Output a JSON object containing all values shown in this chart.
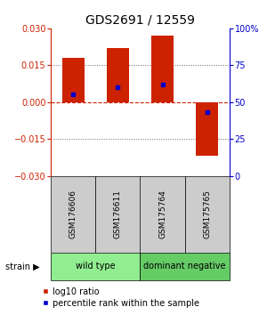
{
  "title": "GDS2691 / 12559",
  "samples": [
    "GSM176606",
    "GSM176611",
    "GSM175764",
    "GSM175765"
  ],
  "log10_ratios": [
    0.018,
    0.022,
    0.027,
    -0.022
  ],
  "percentile_ranks": [
    0.55,
    0.6,
    0.62,
    0.43
  ],
  "ylim_left": [
    -0.03,
    0.03
  ],
  "ylim_right": [
    0,
    100
  ],
  "yticks_left": [
    -0.03,
    -0.015,
    0,
    0.015,
    0.03
  ],
  "yticks_right": [
    0,
    25,
    50,
    75,
    100
  ],
  "groups": [
    {
      "label": "wild type",
      "samples": [
        0,
        1
      ],
      "color": "#90ee90"
    },
    {
      "label": "dominant negative",
      "samples": [
        2,
        3
      ],
      "color": "#66cc66"
    }
  ],
  "bar_color": "#cc2200",
  "dot_color": "#0000cc",
  "left_axis_color": "#cc2200",
  "right_axis_color": "#0000cc",
  "bg_color": "#ffffff",
  "sample_box_color": "#cccccc",
  "hline0_color": "#cc2200",
  "grid_color": "#666666",
  "bar_width": 0.5,
  "title_fontsize": 10,
  "tick_fontsize": 7,
  "sample_fontsize": 6.5,
  "group_fontsize": 7,
  "legend_fontsize": 7
}
